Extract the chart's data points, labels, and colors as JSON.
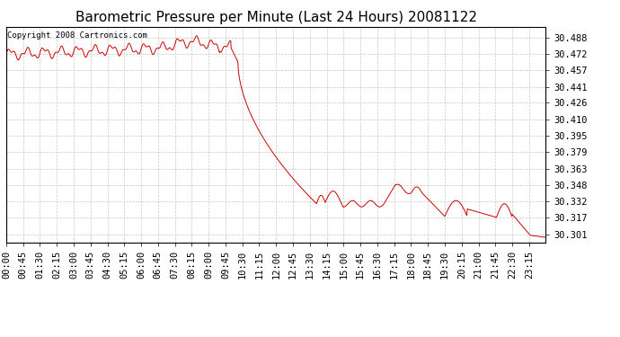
{
  "title": "Barometric Pressure per Minute (Last 24 Hours) 20081122",
  "copyright_text": "Copyright 2008 Cartronics.com",
  "line_color": "#cc0000",
  "background_color": "#ffffff",
  "grid_color": "#c8c8c8",
  "yticks": [
    30.301,
    30.317,
    30.332,
    30.348,
    30.363,
    30.379,
    30.395,
    30.41,
    30.426,
    30.441,
    30.457,
    30.472,
    30.488
  ],
  "ylim": [
    30.293,
    30.498
  ],
  "xtick_labels": [
    "00:00",
    "00:45",
    "01:30",
    "02:15",
    "03:00",
    "03:45",
    "04:30",
    "05:15",
    "06:00",
    "06:45",
    "07:30",
    "08:15",
    "09:00",
    "09:45",
    "10:30",
    "11:15",
    "12:00",
    "12:45",
    "13:30",
    "14:15",
    "15:00",
    "15:45",
    "16:30",
    "17:15",
    "18:00",
    "18:45",
    "19:30",
    "20:15",
    "21:00",
    "21:45",
    "22:30",
    "23:15"
  ],
  "title_fontsize": 11,
  "copyright_fontsize": 6.5,
  "tick_fontsize": 7.5
}
